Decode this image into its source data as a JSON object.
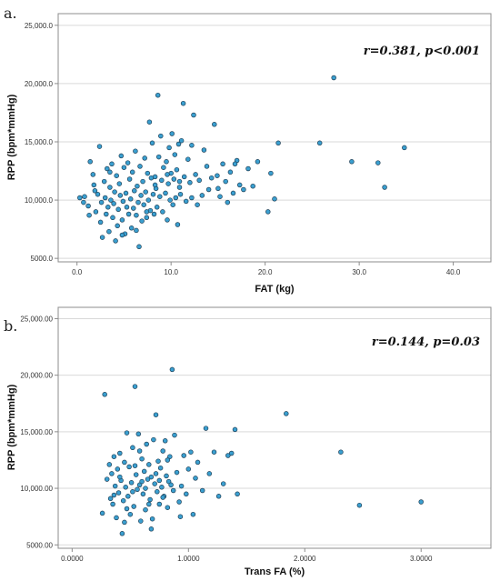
{
  "chart_data": [
    {
      "type": "scatter",
      "panel_label": "a.",
      "annotation": "r=0.381, p<0.001",
      "xlabel": "FAT (kg)",
      "ylabel": "RPP (bpm*mmHg)",
      "xlim": [
        -2,
        44
      ],
      "ylim": [
        4700,
        26000
      ],
      "x_ticks": [
        0,
        10,
        20,
        30,
        40
      ],
      "x_tick_labels": [
        "0.0",
        "10.0",
        "20.0",
        "30.0",
        "40.0"
      ],
      "y_ticks": [
        5000,
        10000,
        15000,
        20000,
        25000
      ],
      "y_tick_labels": [
        "5000.0",
        "10,000.0",
        "15,000.0",
        "20,000.0",
        "25,000.0"
      ],
      "grid": "horizontal",
      "color": "#3a9fd0",
      "points": [
        [
          0.3,
          10200
        ],
        [
          0.8,
          10300
        ],
        [
          1.2,
          9500
        ],
        [
          1.3,
          8700
        ],
        [
          1.4,
          13300
        ],
        [
          1.7,
          12200
        ],
        [
          1.8,
          11300
        ],
        [
          2.0,
          9000
        ],
        [
          2.2,
          10500
        ],
        [
          2.4,
          14600
        ],
        [
          2.5,
          8100
        ],
        [
          2.6,
          9800
        ],
        [
          2.7,
          6800
        ],
        [
          2.9,
          11600
        ],
        [
          3.0,
          10200
        ],
        [
          3.1,
          8800
        ],
        [
          3.2,
          12700
        ],
        [
          3.3,
          9400
        ],
        [
          3.4,
          7300
        ],
        [
          3.5,
          11100
        ],
        [
          3.6,
          10000
        ],
        [
          3.7,
          13100
        ],
        [
          3.8,
          8500
        ],
        [
          3.9,
          9700
        ],
        [
          4.0,
          10700
        ],
        [
          4.1,
          6500
        ],
        [
          4.2,
          12100
        ],
        [
          4.3,
          7800
        ],
        [
          4.4,
          9200
        ],
        [
          4.5,
          11400
        ],
        [
          4.6,
          10400
        ],
        [
          4.7,
          13800
        ],
        [
          4.8,
          8300
        ],
        [
          4.9,
          9900
        ],
        [
          5.0,
          12800
        ],
        [
          5.1,
          7100
        ],
        [
          5.2,
          10600
        ],
        [
          5.3,
          9400
        ],
        [
          5.4,
          13200
        ],
        [
          5.5,
          8800
        ],
        [
          5.6,
          11800
        ],
        [
          5.7,
          10100
        ],
        [
          5.8,
          7600
        ],
        [
          5.9,
          12400
        ],
        [
          6.0,
          9300
        ],
        [
          6.1,
          10800
        ],
        [
          6.2,
          14200
        ],
        [
          6.3,
          8700
        ],
        [
          6.4,
          11200
        ],
        [
          6.5,
          9800
        ],
        [
          6.6,
          6000
        ],
        [
          6.7,
          12900
        ],
        [
          6.8,
          10400
        ],
        [
          6.9,
          8200
        ],
        [
          7.0,
          11600
        ],
        [
          7.1,
          9600
        ],
        [
          7.2,
          13600
        ],
        [
          7.3,
          10700
        ],
        [
          7.4,
          8500
        ],
        [
          7.5,
          12300
        ],
        [
          7.6,
          10000
        ],
        [
          7.7,
          16700
        ],
        [
          7.8,
          9100
        ],
        [
          7.9,
          11900
        ],
        [
          8.0,
          14900
        ],
        [
          8.1,
          10500
        ],
        [
          8.2,
          8800
        ],
        [
          8.3,
          12000
        ],
        [
          8.4,
          11000
        ],
        [
          8.5,
          9400
        ],
        [
          8.6,
          19000
        ],
        [
          8.7,
          13700
        ],
        [
          8.8,
          10300
        ],
        [
          8.9,
          15500
        ],
        [
          9.0,
          11700
        ],
        [
          9.1,
          9000
        ],
        [
          9.2,
          12800
        ],
        [
          9.4,
          10600
        ],
        [
          9.5,
          13300
        ],
        [
          9.6,
          8300
        ],
        [
          9.7,
          11400
        ],
        [
          9.8,
          14500
        ],
        [
          9.9,
          10000
        ],
        [
          10.0,
          12300
        ],
        [
          10.1,
          15700
        ],
        [
          10.2,
          9600
        ],
        [
          10.3,
          11800
        ],
        [
          10.4,
          13900
        ],
        [
          10.5,
          10200
        ],
        [
          10.6,
          12600
        ],
        [
          10.7,
          7900
        ],
        [
          10.8,
          14800
        ],
        [
          10.9,
          11100
        ],
        [
          11.0,
          10500
        ],
        [
          11.1,
          15100
        ],
        [
          11.3,
          18300
        ],
        [
          11.4,
          12000
        ],
        [
          11.6,
          9900
        ],
        [
          11.8,
          13500
        ],
        [
          12.0,
          11500
        ],
        [
          12.2,
          10200
        ],
        [
          12.4,
          17300
        ],
        [
          12.6,
          12200
        ],
        [
          12.8,
          9600
        ],
        [
          13.0,
          11700
        ],
        [
          13.3,
          10400
        ],
        [
          13.5,
          14300
        ],
        [
          13.8,
          12900
        ],
        [
          14.0,
          10900
        ],
        [
          14.3,
          11900
        ],
        [
          14.6,
          16500
        ],
        [
          14.9,
          12100
        ],
        [
          15.2,
          10300
        ],
        [
          15.5,
          13100
        ],
        [
          15.8,
          11600
        ],
        [
          16.0,
          9800
        ],
        [
          16.3,
          12400
        ],
        [
          16.6,
          10600
        ],
        [
          17.0,
          13400
        ],
        [
          17.3,
          11300
        ],
        [
          17.7,
          10900
        ],
        [
          18.2,
          12700
        ],
        [
          18.7,
          11200
        ],
        [
          19.2,
          13300
        ],
        [
          20.3,
          9000
        ],
        [
          20.6,
          12300
        ],
        [
          21.0,
          10100
        ],
        [
          21.4,
          14900
        ],
        [
          25.8,
          14900
        ],
        [
          27.3,
          20500
        ],
        [
          29.2,
          13300
        ],
        [
          32.0,
          13200
        ],
        [
          32.7,
          11100
        ],
        [
          34.8,
          14500
        ],
        [
          0.7,
          9800
        ],
        [
          1.9,
          10800
        ],
        [
          3.5,
          12400
        ],
        [
          4.8,
          7000
        ],
        [
          6.3,
          7400
        ],
        [
          7.4,
          9000
        ],
        [
          8.3,
          11300
        ],
        [
          9.6,
          12200
        ],
        [
          10.9,
          11600
        ],
        [
          12.2,
          14700
        ],
        [
          15.0,
          11000
        ],
        [
          16.8,
          13100
        ]
      ]
    },
    {
      "type": "scatter",
      "panel_label": "b.",
      "annotation": "r=0.144, p=0.03",
      "xlabel": "Trans FA (%)",
      "ylabel": "RPP (bpm*mmHg)",
      "xlim": [
        -0.12,
        3.6
      ],
      "ylim": [
        4700,
        26000
      ],
      "x_ticks": [
        0,
        1,
        2,
        3
      ],
      "x_tick_labels": [
        "0.0000",
        "1.0000",
        "2.0000",
        "3.0000"
      ],
      "y_ticks": [
        5000,
        10000,
        15000,
        20000,
        25000
      ],
      "y_tick_labels": [
        "5000.00",
        "10,000.00",
        "15,000.00",
        "20,000.00",
        "25,000.00"
      ],
      "grid": "horizontal",
      "color": "#3a9fd0",
      "points": [
        [
          0.26,
          7800
        ],
        [
          0.28,
          18300
        ],
        [
          0.3,
          10800
        ],
        [
          0.32,
          12100
        ],
        [
          0.33,
          9100
        ],
        [
          0.34,
          11300
        ],
        [
          0.35,
          8600
        ],
        [
          0.36,
          12800
        ],
        [
          0.37,
          10200
        ],
        [
          0.38,
          7400
        ],
        [
          0.39,
          11700
        ],
        [
          0.4,
          9600
        ],
        [
          0.41,
          13100
        ],
        [
          0.42,
          10700
        ],
        [
          0.43,
          6000
        ],
        [
          0.44,
          8900
        ],
        [
          0.45,
          12300
        ],
        [
          0.46,
          10100
        ],
        [
          0.47,
          14900
        ],
        [
          0.48,
          9300
        ],
        [
          0.49,
          11900
        ],
        [
          0.5,
          7700
        ],
        [
          0.51,
          10500
        ],
        [
          0.52,
          13600
        ],
        [
          0.53,
          8400
        ],
        [
          0.54,
          19000
        ],
        [
          0.55,
          11200
        ],
        [
          0.56,
          9900
        ],
        [
          0.57,
          14800
        ],
        [
          0.58,
          10300
        ],
        [
          0.59,
          7100
        ],
        [
          0.6,
          12600
        ],
        [
          0.61,
          9500
        ],
        [
          0.62,
          11500
        ],
        [
          0.63,
          8100
        ],
        [
          0.64,
          13900
        ],
        [
          0.65,
          10800
        ],
        [
          0.66,
          12100
        ],
        [
          0.67,
          9000
        ],
        [
          0.68,
          11000
        ],
        [
          0.69,
          7300
        ],
        [
          0.7,
          14300
        ],
        [
          0.71,
          10400
        ],
        [
          0.72,
          16500
        ],
        [
          0.73,
          9700
        ],
        [
          0.74,
          12400
        ],
        [
          0.75,
          8600
        ],
        [
          0.76,
          11800
        ],
        [
          0.77,
          10100
        ],
        [
          0.78,
          13300
        ],
        [
          0.79,
          9300
        ],
        [
          0.8,
          14200
        ],
        [
          0.81,
          11100
        ],
        [
          0.82,
          8300
        ],
        [
          0.83,
          10600
        ],
        [
          0.84,
          12800
        ],
        [
          0.86,
          20500
        ],
        [
          0.87,
          9800
        ],
        [
          0.88,
          14700
        ],
        [
          0.9,
          11400
        ],
        [
          0.92,
          8800
        ],
        [
          0.94,
          10200
        ],
        [
          0.96,
          12900
        ],
        [
          0.98,
          9500
        ],
        [
          1.0,
          11700
        ],
        [
          1.02,
          13200
        ],
        [
          1.04,
          7700
        ],
        [
          1.06,
          10900
        ],
        [
          1.08,
          12300
        ],
        [
          1.12,
          9800
        ],
        [
          1.15,
          15300
        ],
        [
          1.18,
          11300
        ],
        [
          1.22,
          13200
        ],
        [
          1.26,
          9300
        ],
        [
          1.3,
          10400
        ],
        [
          1.34,
          12900
        ],
        [
          1.37,
          13100
        ],
        [
          1.4,
          15200
        ],
        [
          1.42,
          9500
        ],
        [
          1.84,
          16600
        ],
        [
          2.31,
          13200
        ],
        [
          2.47,
          8500
        ],
        [
          3.0,
          8800
        ],
        [
          0.45,
          7000
        ],
        [
          0.52,
          9700
        ],
        [
          0.58,
          13300
        ],
        [
          0.63,
          10000
        ],
        [
          0.68,
          6400
        ],
        [
          0.75,
          10700
        ],
        [
          0.82,
          12500
        ],
        [
          0.36,
          9400
        ],
        [
          0.41,
          11000
        ],
        [
          0.47,
          8200
        ],
        [
          0.54,
          12000
        ],
        [
          0.6,
          10600
        ],
        [
          0.66,
          8600
        ],
        [
          0.72,
          11300
        ],
        [
          0.78,
          9200
        ],
        [
          0.85,
          10300
        ],
        [
          0.93,
          7500
        ]
      ]
    }
  ]
}
